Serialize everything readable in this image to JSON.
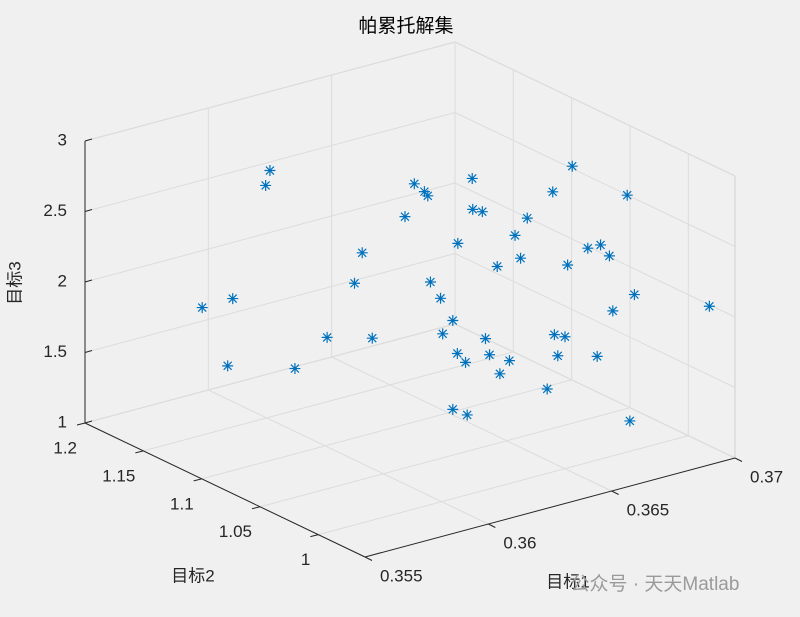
{
  "chart_data": {
    "type": "scatter3d",
    "title": "帕累托解集",
    "xlabel": "目标1",
    "ylabel": "目标2",
    "zlabel": "目标3",
    "watermark": "公众号 · 天天Matlab",
    "color": "#0072bd",
    "marker": "*",
    "grid": true,
    "xlim": [
      0.355,
      0.37
    ],
    "ylim": [
      0.96,
      1.2
    ],
    "zlim": [
      1,
      3
    ],
    "xticks": [
      0.355,
      0.36,
      0.365,
      0.37
    ],
    "yticks": [
      1,
      1.05,
      1.1,
      1.15,
      1.2
    ],
    "zticks": [
      1,
      1.5,
      2,
      2.5,
      3
    ],
    "x": [
      0.35819,
      0.35886,
      0.35875,
      0.35958,
      0.35966,
      0.3602,
      0.36089,
      0.36148,
      0.36165,
      0.36187,
      0.36258,
      0.36277,
      0.36299,
      0.36308,
      0.36314,
      0.36336,
      0.3634,
      0.36362,
      0.36371,
      0.36373,
      0.3639,
      0.36403,
      0.36405,
      0.36425,
      0.36433,
      0.3644,
      0.36457,
      0.36463,
      0.36483,
      0.36496,
      0.36509,
      0.36522,
      0.36565,
      0.36578,
      0.3658,
      0.36589,
      0.36604,
      0.3661,
      0.36676,
      0.36654,
      0.36673,
      0.36682,
      0.36699,
      0.36708,
      0.36738,
      0.36744,
      0.36753,
      0.36915,
      0.36362,
      0.36392
    ],
    "y": [
      1.167,
      1.155,
      1.157,
      1.142,
      1.14,
      1.13,
      1.117,
      1.106,
      1.103,
      1.099,
      1.086,
      1.082,
      1.078,
      1.077,
      1.076,
      1.072,
      1.071,
      1.067,
      1.065,
      1.065,
      1.062,
      1.059,
      1.059,
      1.055,
      1.054,
      1.052,
      1.049,
      1.048,
      1.044,
      1.042,
      1.04,
      1.037,
      1.029,
      1.027,
      1.026,
      1.025,
      1.022,
      1.021,
      1.031,
      1.013,
      1.009,
      1.008,
      1.004,
      1.003,
      0.997,
      0.996,
      0.994,
      0.964,
      1.067,
      1.061
    ],
    "z": [
      1.8,
      1.88,
      1.4,
      2.7,
      2.81,
      1.42,
      1.66,
      2.06,
      2.28,
      1.68,
      2.56,
      2.8,
      2.75,
      2.72,
      2.11,
      2.0,
      1.75,
      1.85,
      1.62,
      2.4,
      1.56,
      2.87,
      2.65,
      2.64,
      1.74,
      1.63,
      2.26,
      1.5,
      1.6,
      2.49,
      2.33,
      2.62,
      1.42,
      2.82,
      1.81,
      1.66,
      1.8,
      2.31,
      2.94,
      2.44,
      1.68,
      2.47,
      2.4,
      2.01,
      2.84,
      1.24,
      2.14,
      2.1,
      1.22,
      1.19
    ]
  }
}
